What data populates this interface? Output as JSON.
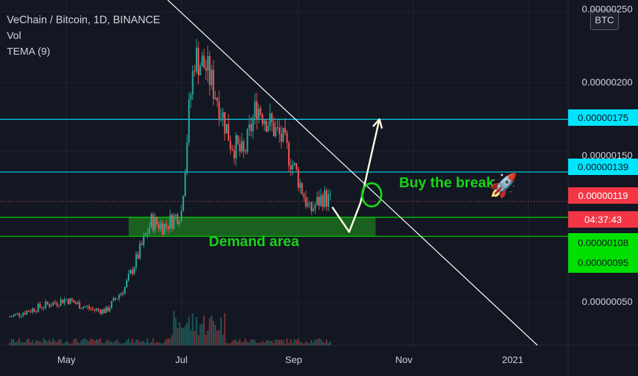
{
  "legend": {
    "title": "VeChain / Bitcoin, 1D, BINANCE",
    "vol": "Vol",
    "tema": "TEMA (9)"
  },
  "toolbar": {
    "currency_button": "BTC"
  },
  "price_axis": {
    "ticks": [
      {
        "label": "0.00000250",
        "value": 2.5e-06
      },
      {
        "label": "0.00000200",
        "value": 2e-06
      },
      {
        "label": "0.00000150",
        "value": 1.5e-06
      },
      {
        "label": "0.00000050",
        "value": 5e-07
      }
    ]
  },
  "price_tags": [
    {
      "label": "0.00000175",
      "bg": "#00e5ff",
      "fg": "#131722"
    },
    {
      "label": "0.00000139",
      "bg": "#00e5ff",
      "fg": "#131722"
    },
    {
      "label": "0.00000119",
      "bg": "#f23645",
      "fg": "#ffffff"
    },
    {
      "label": "04:37:43",
      "bg": "#f23645",
      "fg": "#ffffff"
    },
    {
      "label": "0.00000108",
      "bg": "#00e000",
      "fg": "#131722"
    },
    {
      "label": "0.00000095",
      "bg": "#00e000",
      "fg": "#131722"
    }
  ],
  "time_axis": [
    "May",
    "Jul",
    "Sep",
    "Nov",
    "2021"
  ],
  "annotations": {
    "demand": "Demand area",
    "buy": "Buy the break",
    "rocket": "🚀"
  },
  "colors": {
    "background": "#131722",
    "up": "#26a69a",
    "down": "#ef5350",
    "cyan_level": "#00e5ff",
    "green_level": "#00e000",
    "annotation_green": "#18d418",
    "trendline": "#ffffff",
    "arrow": "#fffde0"
  },
  "chart_data": {
    "type": "candlestick",
    "symbol": "VETBTC",
    "interval": "1D",
    "horizontal_levels": [
      1.75e-06,
      1.39e-06,
      1.08e-06,
      9.5e-07
    ],
    "last_price": 1.19e-06,
    "demand_zone": [
      9.5e-07,
      1.08e-06
    ],
    "projected_path": [
      {
        "x": "2020-09-19",
        "y": 1.15e-06
      },
      {
        "x": "2020-09-28",
        "y": 9.8e-07
      },
      {
        "x": "2020-10-04",
        "y": 1.18e-06
      },
      {
        "x": "2020-10-14",
        "y": 1.75e-06
      }
    ],
    "series": [
      {
        "x": "2020-04-01",
        "y": 4e-07
      },
      {
        "x": "2020-04-15",
        "y": 4.6e-07
      },
      {
        "x": "2020-05-01",
        "y": 5.2e-07
      },
      {
        "x": "2020-05-08",
        "y": 4.8e-07
      },
      {
        "x": "2020-05-15",
        "y": 4.5e-07
      },
      {
        "x": "2020-05-22",
        "y": 4.4e-07
      },
      {
        "x": "2020-06-01",
        "y": 6e-07
      },
      {
        "x": "2020-06-08",
        "y": 8.2e-07
      },
      {
        "x": "2020-06-15",
        "y": 1.05e-06
      },
      {
        "x": "2020-06-22",
        "y": 1.02e-06
      },
      {
        "x": "2020-07-01",
        "y": 1.12e-06
      },
      {
        "x": "2020-07-05",
        "y": 1.8e-06
      },
      {
        "x": "2020-07-08",
        "y": 2.18e-06
      },
      {
        "x": "2020-07-14",
        "y": 2.1e-06
      },
      {
        "x": "2020-07-20",
        "y": 1.9e-06
      },
      {
        "x": "2020-07-27",
        "y": 1.6e-06
      },
      {
        "x": "2020-08-03",
        "y": 1.5e-06
      },
      {
        "x": "2020-08-10",
        "y": 1.85e-06
      },
      {
        "x": "2020-08-17",
        "y": 1.72e-06
      },
      {
        "x": "2020-08-24",
        "y": 1.6e-06
      },
      {
        "x": "2020-08-31",
        "y": 1.38e-06
      },
      {
        "x": "2020-09-07",
        "y": 1.12e-06
      },
      {
        "x": "2020-09-14",
        "y": 1.22e-06
      },
      {
        "x": "2020-09-18",
        "y": 1.19e-06
      }
    ]
  }
}
